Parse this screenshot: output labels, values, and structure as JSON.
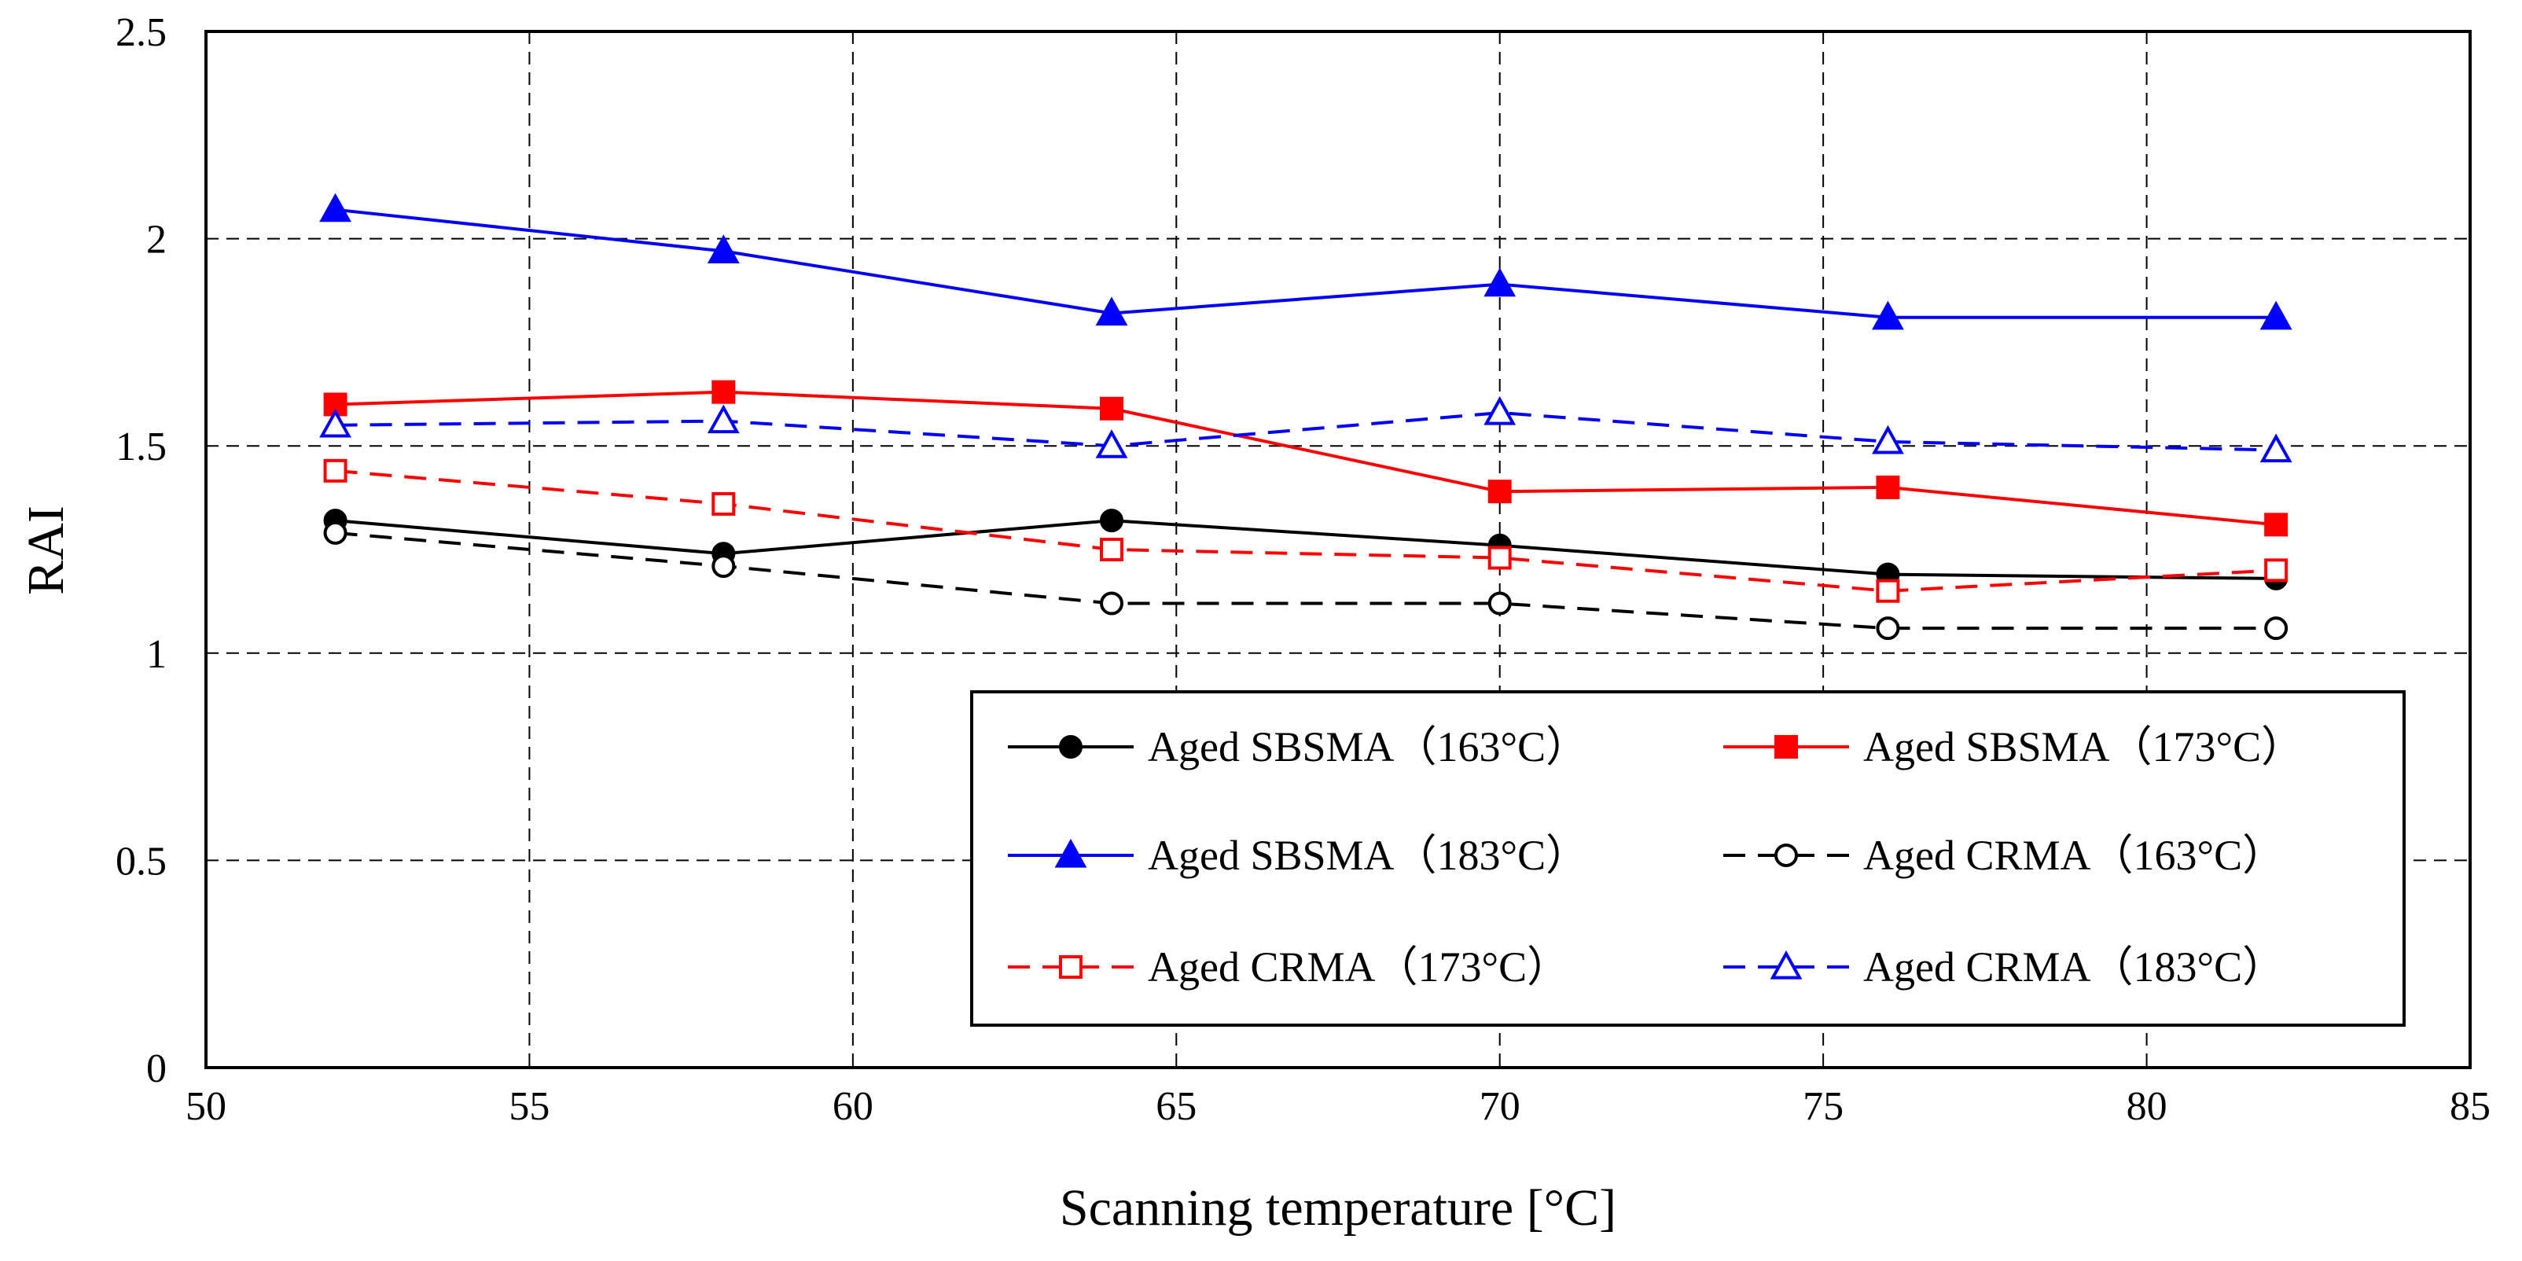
{
  "chart_data": {
    "type": "line",
    "title": "",
    "xlabel": "Scanning temperature [°C]",
    "ylabel": "RAI",
    "xlim": [
      50,
      85
    ],
    "ylim": [
      0,
      2.5
    ],
    "xticks": [
      "50",
      "55",
      "60",
      "65",
      "70",
      "75",
      "80",
      "85"
    ],
    "yticks": [
      "0",
      "0.5",
      "1",
      "1.5",
      "2",
      "2.5"
    ],
    "grid": true,
    "legend_position": "bottom-right",
    "x": [
      52,
      58,
      64,
      70,
      76,
      82
    ],
    "series": [
      {
        "name": "Aged SBSMA（163°C）",
        "values": [
          1.32,
          1.24,
          1.32,
          1.26,
          1.19,
          1.18
        ],
        "color": "#000000",
        "dashed": false,
        "marker": "circle",
        "filled": true
      },
      {
        "name": "Aged SBSMA（173°C）",
        "values": [
          1.6,
          1.63,
          1.59,
          1.39,
          1.4,
          1.31
        ],
        "color": "#ff0000",
        "dashed": false,
        "marker": "square",
        "filled": true
      },
      {
        "name": "Aged SBSMA（183°C）",
        "values": [
          2.07,
          1.97,
          1.82,
          1.89,
          1.81,
          1.81
        ],
        "color": "#0000ff",
        "dashed": false,
        "marker": "triangle",
        "filled": true
      },
      {
        "name": "Aged CRMA（163°C）",
        "values": [
          1.29,
          1.21,
          1.12,
          1.12,
          1.06,
          1.06
        ],
        "color": "#000000",
        "dashed": true,
        "marker": "circle",
        "filled": false
      },
      {
        "name": "Aged CRMA（173°C）",
        "values": [
          1.44,
          1.36,
          1.25,
          1.23,
          1.15,
          1.2
        ],
        "color": "#ff0000",
        "dashed": true,
        "marker": "square",
        "filled": false
      },
      {
        "name": "Aged CRMA（183°C）",
        "values": [
          1.55,
          1.56,
          1.5,
          1.58,
          1.51,
          1.49
        ],
        "color": "#0000ff",
        "dashed": true,
        "marker": "triangle",
        "filled": false
      }
    ]
  }
}
